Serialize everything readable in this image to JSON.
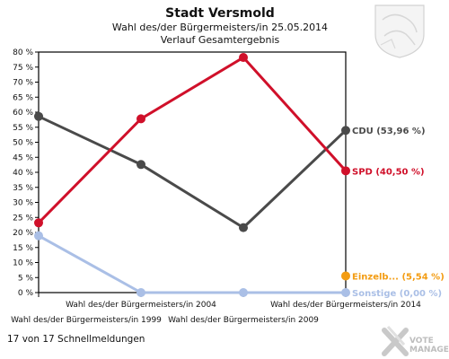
{
  "header": {
    "title": "Stadt Versmold",
    "subtitle": "Wahl des/der Bürgermeisters/in  25.05.2014",
    "subtitle2": "Verlauf Gesamtergebnis"
  },
  "footer": {
    "text": "17 von 17 Schnellmeldungen"
  },
  "brand": {
    "line1": "VOTE",
    "line2": "MANAGER"
  },
  "colors": {
    "cdu": "#4a4a4a",
    "spd": "#d0102a",
    "einzel": "#f39c12",
    "sonstige": "#aabfe6",
    "axis": "#000000"
  },
  "chart_data": {
    "type": "line",
    "categories": [
      "Wahl des/der Bürgermeisters/in  1999",
      "Wahl des/der Bürgermeisters/in  2004",
      "Wahl des/der Bürgermeisters/in 2009",
      "Wahl des/der Bürgermeisters/in  2014"
    ],
    "ylim": [
      0,
      80
    ],
    "yticks": [
      "0 %",
      "5 %",
      "10 %",
      "15 %",
      "20 %",
      "25 %",
      "30 %",
      "35 %",
      "40 %",
      "45 %",
      "50 %",
      "55 %",
      "60 %",
      "65 %",
      "70 %",
      "75 %",
      "80 %"
    ],
    "series": [
      {
        "key": "cdu",
        "values": [
          58.6,
          42.6,
          21.6,
          53.96
        ],
        "end_label": "CDU (53,96 %)"
      },
      {
        "key": "spd",
        "values": [
          23.2,
          57.8,
          78.2,
          40.5
        ],
        "end_label": "SPD (40,50 %)"
      },
      {
        "key": "einzel",
        "values": [
          null,
          null,
          null,
          5.54
        ],
        "end_label": "Einzelb... (5,54 %)"
      },
      {
        "key": "sonstige",
        "values": [
          18.9,
          0,
          0,
          0
        ],
        "end_label": "Sonstige (0,00 %)"
      }
    ]
  }
}
